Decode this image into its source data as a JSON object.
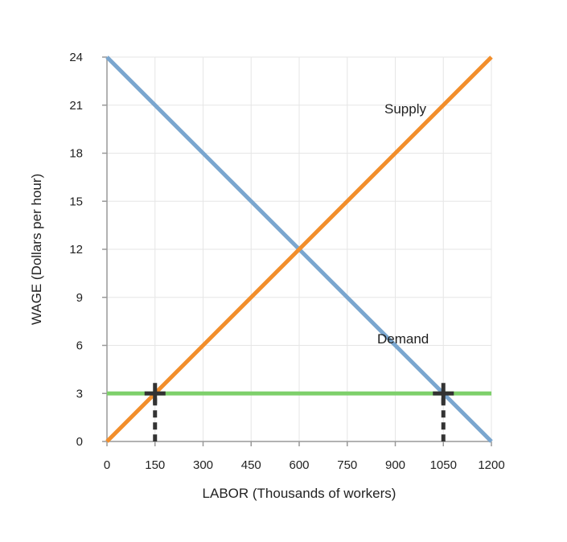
{
  "chart_data": {
    "type": "line",
    "title": "",
    "xlabel": "LABOR (Thousands of workers)",
    "ylabel": "WAGE (Dollars per hour)",
    "xlim": [
      0,
      1200
    ],
    "ylim": [
      0,
      24
    ],
    "x_ticks": [
      "0",
      "150",
      "300",
      "450",
      "600",
      "750",
      "900",
      "1050",
      "1200"
    ],
    "y_ticks": [
      "0",
      "3",
      "6",
      "9",
      "12",
      "15",
      "18",
      "21",
      "24"
    ],
    "grid": true,
    "legend": "none",
    "series": [
      {
        "name": "Supply",
        "color": "#f28e2b",
        "points": [
          [
            0,
            0
          ],
          [
            1200,
            24
          ]
        ]
      },
      {
        "name": "Demand",
        "color": "#7aa6cf",
        "points": [
          [
            0,
            24
          ],
          [
            1200,
            0
          ]
        ]
      },
      {
        "name": "",
        "color": "#7ed06b",
        "points": [
          [
            0,
            3
          ],
          [
            1200,
            3
          ]
        ]
      }
    ],
    "markers": [
      {
        "x": 150,
        "y": 3,
        "symbol": "cross",
        "drop_line": "dashed"
      },
      {
        "x": 1050,
        "y": 3,
        "symbol": "cross",
        "drop_line": "dashed"
      }
    ]
  }
}
